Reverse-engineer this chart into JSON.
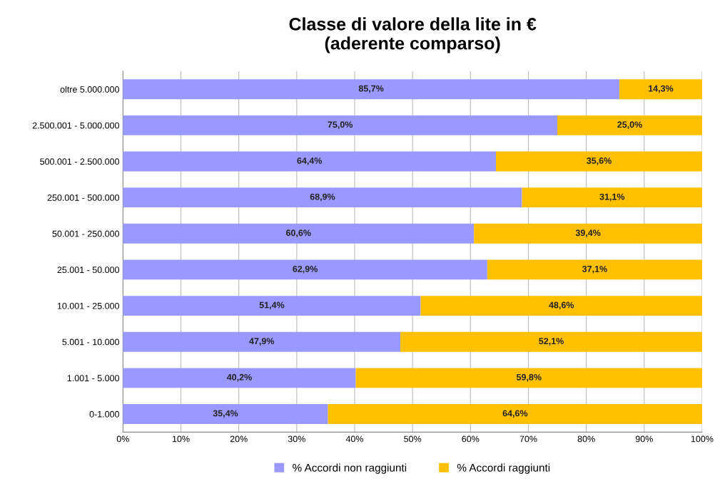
{
  "chart_data": {
    "type": "bar",
    "orientation": "horizontal",
    "stacked": true,
    "title": "Classe di valore della lite in €\n(aderente comparso)",
    "categories": [
      "oltre 5.000.000",
      "2.500.001 - 5.000.000",
      "500.001 - 2.500.000",
      "250.001 - 500.000",
      "50.001 - 250.000",
      "25.001 - 50.000",
      "10.001 - 25.000",
      "5.001 - 10.000",
      "1.001 - 5.000",
      "0-1.000"
    ],
    "series": [
      {
        "name": "% Accordi non raggiunti",
        "color": "#9999ff",
        "values": [
          85.7,
          75.0,
          64.4,
          68.9,
          60.6,
          62.9,
          51.4,
          47.9,
          40.2,
          35.4
        ],
        "value_labels": [
          "85,7%",
          "75,0%",
          "64,4%",
          "68,9%",
          "60,6%",
          "62,9%",
          "51,4%",
          "47,9%",
          "40,2%",
          "35,4%"
        ]
      },
      {
        "name": "% Accordi raggiunti",
        "color": "#ffc000",
        "values": [
          14.3,
          25.0,
          35.6,
          31.1,
          39.4,
          37.1,
          48.6,
          52.1,
          59.8,
          64.6
        ],
        "value_labels": [
          "14,3%",
          "25,0%",
          "35,6%",
          "31,1%",
          "39,4%",
          "37,1%",
          "48,6%",
          "52,1%",
          "59,8%",
          "64,6%"
        ]
      }
    ],
    "xlim": [
      0,
      100
    ],
    "xticks": [
      {
        "value": 0,
        "label": "0%"
      },
      {
        "value": 10,
        "label": "10%"
      },
      {
        "value": 20,
        "label": "20%"
      },
      {
        "value": 30,
        "label": "30%"
      },
      {
        "value": 40,
        "label": "40%"
      },
      {
        "value": 50,
        "label": "50%"
      },
      {
        "value": 60,
        "label": "60%"
      },
      {
        "value": 70,
        "label": "70%"
      },
      {
        "value": 80,
        "label": "80%"
      },
      {
        "value": 90,
        "label": "90%"
      },
      {
        "value": 100,
        "label": "100%"
      }
    ],
    "grid": "x",
    "legend": "bottom"
  }
}
